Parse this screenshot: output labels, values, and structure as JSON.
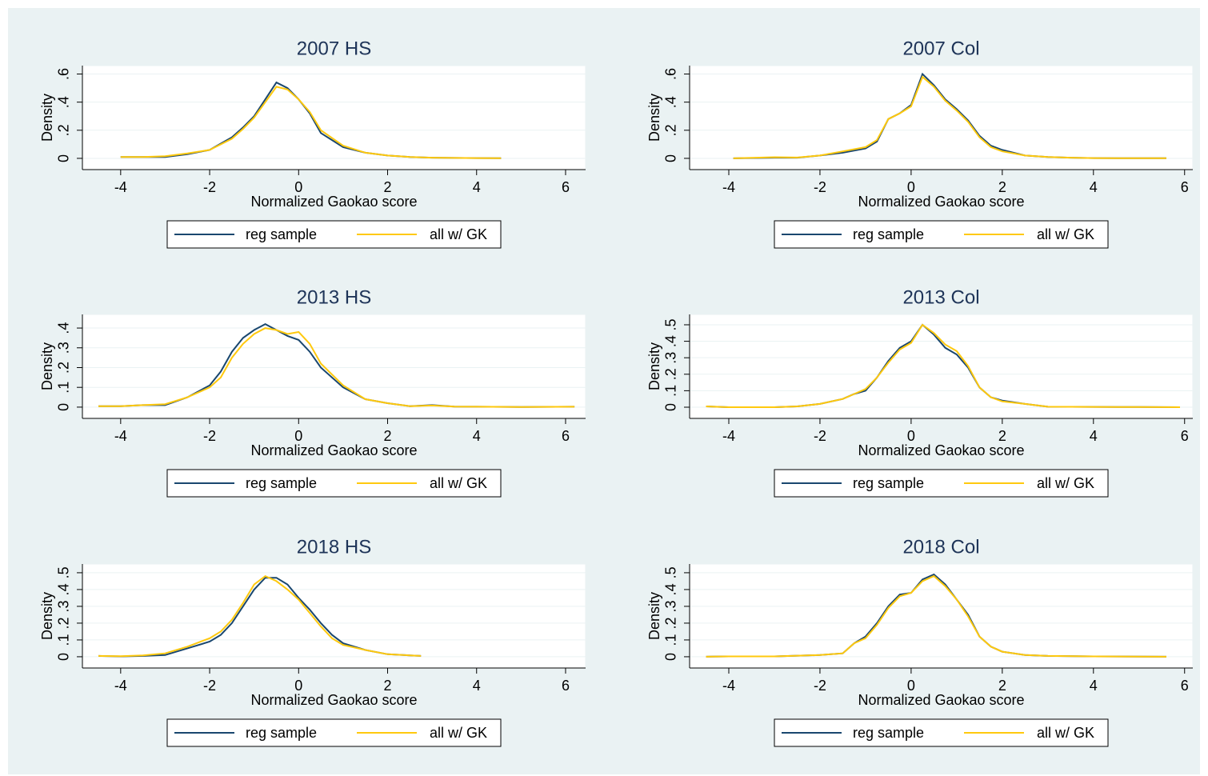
{
  "chart_data": [
    {
      "type": "line",
      "title": "2007 HS",
      "x_label": "Normalized Gaokao score",
      "y_label": "Density",
      "x": [
        -4,
        -3.5,
        -3,
        -2.5,
        -2,
        -1.5,
        -1.25,
        -1,
        -0.75,
        -0.5,
        -0.25,
        0,
        0.25,
        0.5,
        1,
        1.5,
        2,
        2.5,
        3,
        3.5,
        4,
        4.55
      ],
      "series": [
        {
          "name": "reg sample",
          "color": "#1a476f",
          "values": [
            0.01,
            0.01,
            0.01,
            0.03,
            0.06,
            0.15,
            0.22,
            0.3,
            0.42,
            0.54,
            0.5,
            0.42,
            0.32,
            0.18,
            0.08,
            0.04,
            0.02,
            0.01,
            0.005,
            0.003,
            0.002,
            0.001
          ]
        },
        {
          "name": "all w/ GK",
          "color": "#ffc90e",
          "values": [
            0.01,
            0.01,
            0.015,
            0.035,
            0.06,
            0.14,
            0.21,
            0.29,
            0.4,
            0.51,
            0.49,
            0.42,
            0.33,
            0.2,
            0.09,
            0.04,
            0.02,
            0.01,
            0.005,
            0.003,
            0.002,
            0.001
          ]
        }
      ],
      "xlim": [
        -4.86,
        6.45
      ],
      "ylim": [
        -0.08,
        0.66
      ],
      "xticks": [
        -4,
        -2,
        0,
        2,
        4,
        6
      ],
      "yticks": [
        0,
        {
          "value": 0.2,
          "label": ".2"
        },
        {
          "value": 0.4,
          "label": ".4"
        },
        {
          "value": 0.6,
          "label": ".6"
        }
      ],
      "grid": true,
      "legend": "bottom"
    },
    {
      "type": "line",
      "title": "2007 Col",
      "x_label": "Normalized Gaokao score",
      "y_label": "Density",
      "x": [
        -3.9,
        -3,
        -2.5,
        -2,
        -1.5,
        -1,
        -0.75,
        -0.5,
        -0.25,
        0,
        0.25,
        0.5,
        0.75,
        1,
        1.25,
        1.5,
        1.75,
        2,
        2.5,
        3,
        3.5,
        4,
        5,
        5.6
      ],
      "series": [
        {
          "name": "reg sample",
          "color": "#1a476f",
          "values": [
            0,
            0.005,
            0.005,
            0.02,
            0.04,
            0.07,
            0.12,
            0.28,
            0.32,
            0.38,
            0.6,
            0.52,
            0.42,
            0.35,
            0.27,
            0.16,
            0.09,
            0.06,
            0.02,
            0.01,
            0.005,
            0.002,
            0.001,
            0.001
          ]
        },
        {
          "name": "all w/ GK",
          "color": "#ffc90e",
          "values": [
            0,
            0.008,
            0.006,
            0.02,
            0.05,
            0.08,
            0.13,
            0.28,
            0.32,
            0.37,
            0.58,
            0.51,
            0.41,
            0.34,
            0.26,
            0.15,
            0.08,
            0.05,
            0.02,
            0.01,
            0.005,
            0.002,
            0.001,
            0.001
          ]
        }
      ],
      "xlim": [
        -4.86,
        6.18
      ],
      "ylim": [
        -0.08,
        0.66
      ],
      "xticks": [
        -4,
        -2,
        0,
        2,
        4,
        6
      ],
      "yticks": [
        0,
        {
          "value": 0.2,
          "label": ".2"
        },
        {
          "value": 0.4,
          "label": ".4"
        },
        {
          "value": 0.6,
          "label": ".6"
        }
      ],
      "grid": true,
      "legend": "bottom"
    },
    {
      "type": "line",
      "title": "2013 HS",
      "x_label": "Normalized Gaokao score",
      "y_label": "Density",
      "x": [
        -4.5,
        -4,
        -3.5,
        -3,
        -2.5,
        -2,
        -1.75,
        -1.5,
        -1.25,
        -1,
        -0.75,
        -0.5,
        -0.25,
        0,
        0.25,
        0.5,
        1,
        1.5,
        2,
        2.5,
        3,
        3.5,
        4,
        5,
        6.2
      ],
      "series": [
        {
          "name": "reg sample",
          "color": "#1a476f",
          "values": [
            0.005,
            0.005,
            0.01,
            0.01,
            0.05,
            0.11,
            0.18,
            0.28,
            0.35,
            0.39,
            0.42,
            0.39,
            0.36,
            0.34,
            0.28,
            0.2,
            0.1,
            0.04,
            0.02,
            0.005,
            0.01,
            0.003,
            0.002,
            0.001,
            0.002
          ]
        },
        {
          "name": "all w/ GK",
          "color": "#ffc90e",
          "values": [
            0.005,
            0.005,
            0.01,
            0.015,
            0.05,
            0.1,
            0.15,
            0.25,
            0.32,
            0.37,
            0.4,
            0.39,
            0.37,
            0.38,
            0.32,
            0.22,
            0.11,
            0.04,
            0.02,
            0.005,
            0.008,
            0.003,
            0.002,
            0.001,
            0.002
          ]
        }
      ],
      "xlim": [
        -4.86,
        6.45
      ],
      "ylim": [
        -0.057,
        0.469
      ],
      "xticks": [
        -4,
        -2,
        0,
        2,
        4,
        6
      ],
      "yticks": [
        0,
        {
          "value": 0.1,
          "label": ".1"
        },
        {
          "value": 0.2,
          "label": ".2"
        },
        {
          "value": 0.3,
          "label": ".3"
        },
        {
          "value": 0.4,
          "label": ".4"
        }
      ],
      "grid": true,
      "legend": "bottom"
    },
    {
      "type": "line",
      "title": "2013 Col",
      "x_label": "Normalized Gaokao score",
      "y_label": "Density",
      "x": [
        -4.5,
        -4,
        -3,
        -2.5,
        -2,
        -1.5,
        -1.25,
        -1,
        -0.75,
        -0.5,
        -0.25,
        0,
        0.25,
        0.5,
        0.75,
        1,
        1.25,
        1.5,
        1.75,
        2,
        2.5,
        3,
        4,
        5,
        5.9
      ],
      "series": [
        {
          "name": "reg sample",
          "color": "#1a476f",
          "values": [
            0.005,
            0,
            0,
            0.005,
            0.02,
            0.05,
            0.08,
            0.1,
            0.18,
            0.28,
            0.36,
            0.4,
            0.5,
            0.44,
            0.36,
            0.32,
            0.24,
            0.12,
            0.06,
            0.04,
            0.02,
            0.003,
            0.002,
            0.001,
            0
          ]
        },
        {
          "name": "all w/ GK",
          "color": "#ffc90e",
          "values": [
            0.005,
            0,
            0,
            0.005,
            0.02,
            0.05,
            0.08,
            0.11,
            0.18,
            0.27,
            0.35,
            0.39,
            0.5,
            0.45,
            0.38,
            0.34,
            0.25,
            0.12,
            0.06,
            0.035,
            0.02,
            0.003,
            0.002,
            0.001,
            0
          ]
        }
      ],
      "xlim": [
        -4.86,
        6.18
      ],
      "ylim": [
        -0.068,
        0.563
      ],
      "xticks": [
        -4,
        -2,
        0,
        2,
        4,
        6
      ],
      "yticks": [
        0,
        {
          "value": 0.1,
          "label": ".1"
        },
        {
          "value": 0.2,
          "label": ".2"
        },
        {
          "value": 0.3,
          "label": ".3"
        },
        {
          "value": 0.4,
          "label": ".4"
        },
        {
          "value": 0.5,
          "label": ".5"
        }
      ],
      "grid": true,
      "legend": "bottom"
    },
    {
      "type": "line",
      "title": "2018 HS",
      "x_label": "Normalized Gaokao score",
      "y_label": "Density",
      "x": [
        -4.5,
        -4,
        -3.5,
        -3,
        -2.5,
        -2,
        -1.75,
        -1.5,
        -1.25,
        -1,
        -0.75,
        -0.5,
        -0.25,
        0,
        0.25,
        0.5,
        0.75,
        1,
        1.5,
        2,
        2.5,
        2.75
      ],
      "series": [
        {
          "name": "reg sample",
          "color": "#1a476f",
          "values": [
            0.005,
            0.002,
            0.005,
            0.01,
            0.05,
            0.09,
            0.13,
            0.2,
            0.3,
            0.4,
            0.47,
            0.47,
            0.43,
            0.35,
            0.28,
            0.2,
            0.13,
            0.08,
            0.04,
            0.015,
            0.008,
            0.005
          ]
        },
        {
          "name": "all w/ GK",
          "color": "#ffc90e",
          "values": [
            0.005,
            0.003,
            0.008,
            0.02,
            0.06,
            0.11,
            0.15,
            0.22,
            0.32,
            0.43,
            0.48,
            0.45,
            0.4,
            0.34,
            0.26,
            0.18,
            0.11,
            0.07,
            0.04,
            0.015,
            0.008,
            0.005
          ]
        }
      ],
      "xlim": [
        -4.86,
        6.45
      ],
      "ylim": [
        -0.067,
        0.552
      ],
      "xticks": [
        -4,
        -2,
        0,
        2,
        4,
        6
      ],
      "yticks": [
        0,
        {
          "value": 0.1,
          "label": ".1"
        },
        {
          "value": 0.2,
          "label": ".2"
        },
        {
          "value": 0.3,
          "label": ".3"
        },
        {
          "value": 0.4,
          "label": ".4"
        },
        {
          "value": 0.5,
          "label": ".5"
        }
      ],
      "grid": true,
      "legend": "bottom"
    },
    {
      "type": "line",
      "title": "2018 Col",
      "x_label": "Normalized Gaokao score",
      "y_label": "Density",
      "x": [
        -4.5,
        -4,
        -3,
        -2,
        -1.5,
        -1.25,
        -1,
        -0.75,
        -0.5,
        -0.25,
        0,
        0.25,
        0.5,
        0.75,
        1,
        1.25,
        1.5,
        1.75,
        2,
        2.5,
        3,
        4,
        5,
        5.6
      ],
      "series": [
        {
          "name": "reg sample",
          "color": "#1a476f",
          "values": [
            0,
            0.002,
            0.002,
            0.01,
            0.02,
            0.08,
            0.12,
            0.2,
            0.3,
            0.37,
            0.38,
            0.46,
            0.49,
            0.43,
            0.34,
            0.25,
            0.12,
            0.06,
            0.03,
            0.01,
            0.005,
            0.002,
            0.001,
            0
          ]
        },
        {
          "name": "all w/ GK",
          "color": "#ffc90e",
          "values": [
            0,
            0.002,
            0.002,
            0.01,
            0.02,
            0.08,
            0.11,
            0.19,
            0.29,
            0.36,
            0.38,
            0.45,
            0.48,
            0.42,
            0.34,
            0.24,
            0.12,
            0.06,
            0.03,
            0.01,
            0.005,
            0.002,
            0.001,
            0
          ]
        }
      ],
      "xlim": [
        -4.86,
        6.18
      ],
      "ylim": [
        -0.067,
        0.552
      ],
      "xticks": [
        -4,
        -2,
        0,
        2,
        4,
        6
      ],
      "yticks": [
        0,
        {
          "value": 0.1,
          "label": ".1"
        },
        {
          "value": 0.2,
          "label": ".2"
        },
        {
          "value": 0.3,
          "label": ".3"
        },
        {
          "value": 0.4,
          "label": ".4"
        },
        {
          "value": 0.5,
          "label": ".5"
        }
      ],
      "grid": true,
      "legend": "bottom"
    }
  ]
}
